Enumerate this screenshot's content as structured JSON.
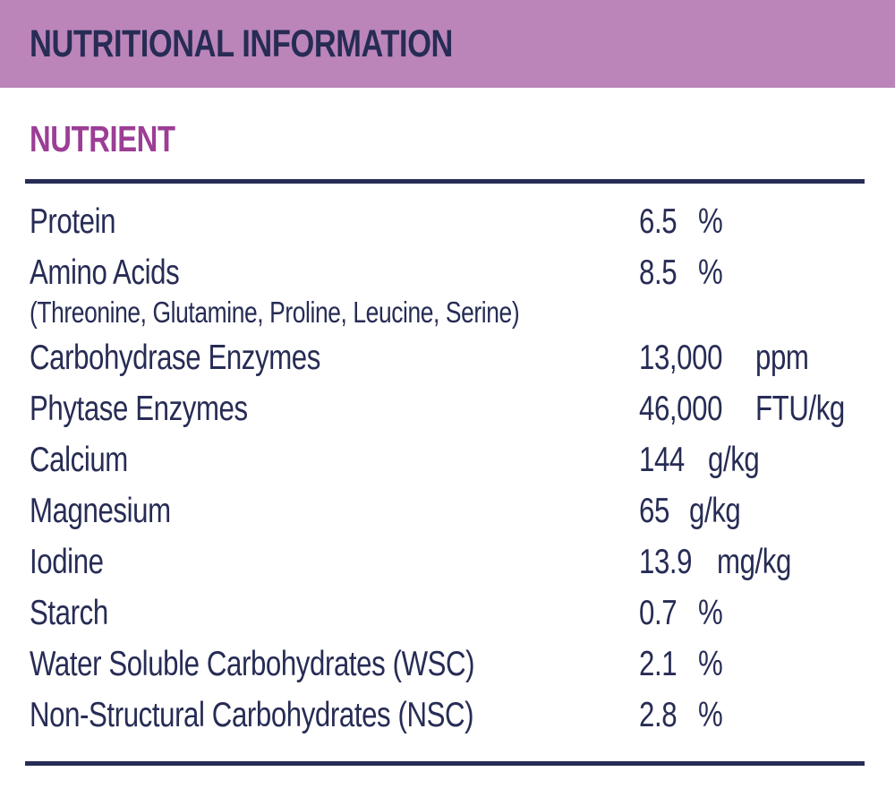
{
  "header": {
    "title": "NUTRITIONAL INFORMATION"
  },
  "table": {
    "column_header": "NUTRIENT",
    "rows": [
      {
        "label": "Protein",
        "amount": "6.5",
        "unit": "%"
      },
      {
        "label": "Amino Acids",
        "sublabel": "(Threonine, Glutamine, Proline, Leucine, Serine)",
        "amount": "8.5",
        "unit": "%"
      },
      {
        "label": "Carbohydrase Enzymes",
        "amount": "13,000",
        "unit": "ppm"
      },
      {
        "label": "Phytase Enzymes",
        "amount": "46,000",
        "unit": "FTU/kg"
      },
      {
        "label": "Calcium",
        "amount": "144",
        "unit": "g/kg"
      },
      {
        "label": "Magnesium",
        "amount": "65",
        "unit": "g/kg"
      },
      {
        "label": "Iodine",
        "amount": "13.9",
        "unit": "mg/kg"
      },
      {
        "label": "Starch",
        "amount": "0.7",
        "unit": "%"
      },
      {
        "label": "Water Soluble Carbohydrates (WSC)",
        "amount": "2.1",
        "unit": "%"
      },
      {
        "label": "Non-Structural Carbohydrates (NSC)",
        "amount": "2.8",
        "unit": "%"
      }
    ]
  },
  "colors": {
    "header_background": "#bb85b9",
    "navy_text": "#272c55",
    "nutrient_heading": "#9c3d96",
    "page_background": "#ffffff"
  }
}
